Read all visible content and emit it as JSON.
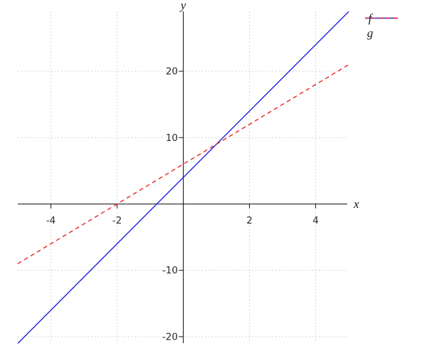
{
  "figure": {
    "background_color": "#ffffff",
    "axis_color": "#111111",
    "grid_color": "#c9c9c9",
    "tick_label_color": "#2b2b2b",
    "axis_title_color": "#1a1a1a"
  },
  "chart_data": {
    "type": "line",
    "title": "",
    "xlabel": "x",
    "ylabel": "y",
    "xlim": [
      -5,
      5
    ],
    "ylim": [
      -21,
      29
    ],
    "x_ticks": [
      -4,
      -2,
      2,
      4
    ],
    "y_ticks": [
      -20,
      -10,
      10,
      20
    ],
    "grid": true,
    "grid_style": "dotted",
    "legend_position": "top-right",
    "series": [
      {
        "name": "f",
        "color": "#2222e0",
        "line_style": "solid",
        "slope": 5,
        "intercept": 4,
        "x": [
          -5,
          5
        ],
        "y": [
          -21,
          29
        ]
      },
      {
        "name": "g",
        "color": "#ea2424",
        "line_style": "dashed",
        "slope": 3,
        "intercept": 6,
        "x": [
          -5,
          5
        ],
        "y": [
          -9,
          21
        ]
      }
    ]
  }
}
